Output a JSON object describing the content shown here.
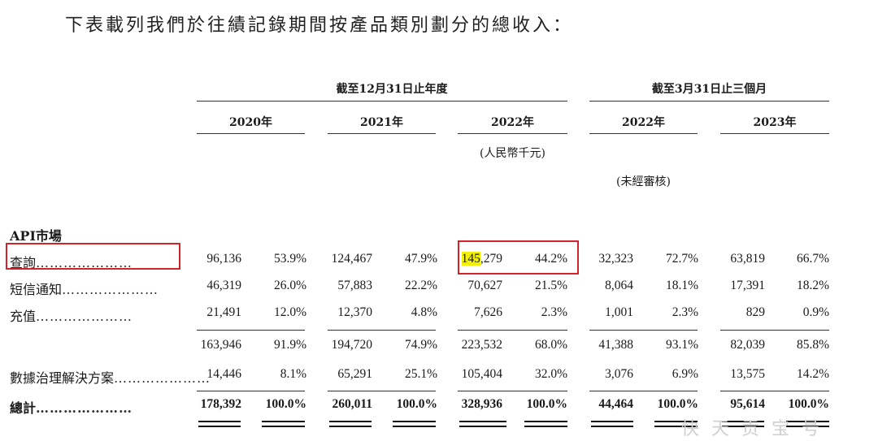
{
  "intro": "下表載列我們於往績記錄期間按產品類別劃分的總收入：",
  "groups": {
    "annual": "截至12月31日止年度",
    "quarter": "截至3月31日止三個月"
  },
  "years": [
    "2020年",
    "2021年",
    "2022年",
    "2022年",
    "2023年"
  ],
  "unit": "(人民幣千元)",
  "unaudited": "(未經審核)",
  "section": "API市場",
  "dots": "…………………",
  "rows": [
    {
      "label": "查詢",
      "cells": [
        "96,136",
        "53.9%",
        "124,467",
        "47.9%",
        "145,279",
        "44.2%",
        "32,323",
        "72.7%",
        "63,819",
        "66.7%"
      ]
    },
    {
      "label": "短信通知",
      "cells": [
        "46,319",
        "26.0%",
        "57,883",
        "22.2%",
        "70,627",
        "21.5%",
        "8,064",
        "18.1%",
        "17,391",
        "18.2%"
      ]
    },
    {
      "label": "充值",
      "cells": [
        "21,491",
        "12.0%",
        "12,370",
        "4.8%",
        "7,626",
        "2.3%",
        "1,001",
        "2.3%",
        "829",
        "0.9%"
      ]
    },
    {
      "label": "",
      "cells": [
        "163,946",
        "91.9%",
        "194,720",
        "74.9%",
        "223,532",
        "68.0%",
        "41,388",
        "93.1%",
        "82,039",
        "85.8%"
      ]
    },
    {
      "label": "數據治理解決方案",
      "cells": [
        "14,446",
        "8.1%",
        "65,291",
        "25.1%",
        "105,404",
        "32.0%",
        "3,076",
        "6.9%",
        "13,575",
        "14.2%"
      ]
    },
    {
      "label": "總計",
      "cells": [
        "178,392",
        "100.0%",
        "260,011",
        "100.0%",
        "328,936",
        "100.0%",
        "44,464",
        "100.0%",
        "95,614",
        "100.0%"
      ]
    }
  ],
  "highlight": {
    "prefix": "145",
    "suffix": ",279"
  },
  "watermark": "快 天 贡 宝 号"
}
